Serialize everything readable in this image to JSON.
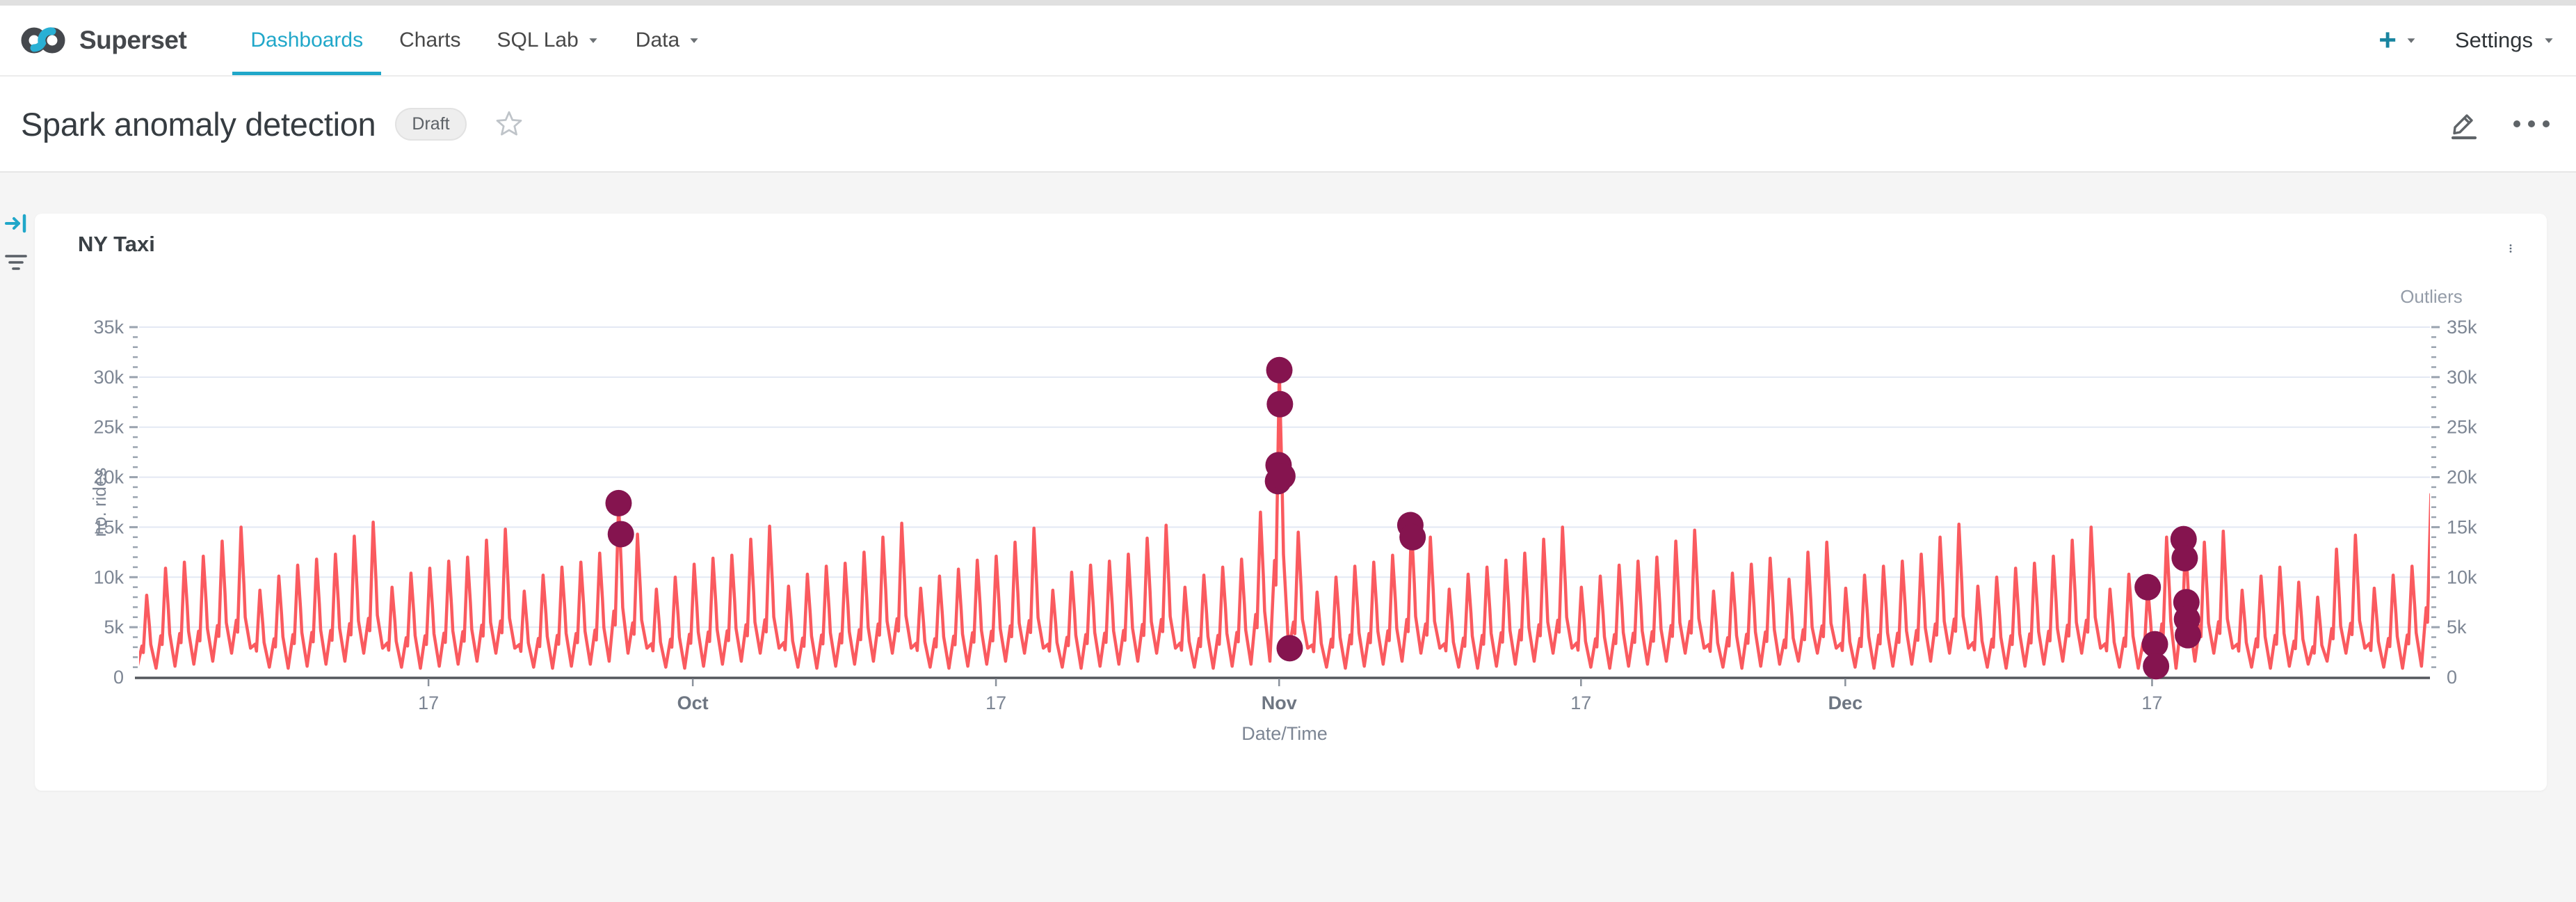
{
  "navbar": {
    "brand": "Superset",
    "items": [
      {
        "label": "Dashboards",
        "active": true,
        "caret": false
      },
      {
        "label": "Charts",
        "active": false,
        "caret": false
      },
      {
        "label": "SQL Lab",
        "active": false,
        "caret": true
      },
      {
        "label": "Data",
        "active": false,
        "caret": true
      }
    ],
    "new_button": "+",
    "settings_label": "Settings"
  },
  "header": {
    "title": "Spark anomaly detection",
    "status_badge": "Draft"
  },
  "chart_card": {
    "title": "NY Taxi"
  },
  "icons": {
    "brand_logo": "superset-infinity",
    "nav_caret": "caret-down",
    "new": "plus",
    "title_star": "star-outline",
    "edit": "pencil",
    "more_header": "ellipsis-horizontal",
    "expand_filters": "arrow-to-right",
    "filter_list": "filter-lines",
    "card_menu": "kebab-vertical"
  },
  "colors": {
    "primary": "#20a7c9",
    "line": "#fa5a5f",
    "outlier": "#85144f",
    "grid": "#e3e8f3",
    "tick": "#9aa3af",
    "axis_label": "#7d8694",
    "month_label": "#6e7682",
    "axis_line": "#53565c",
    "right_title": "#949ca8"
  },
  "chart_data": {
    "type": "line",
    "title": "NY Taxi",
    "xlabel": "Date/Time",
    "ylabel": "no. rides",
    "right_axis_label": "Outliers",
    "legend_position": "none",
    "grid": true,
    "ylim": [
      0,
      35000
    ],
    "y_tick_labels": [
      "0",
      "5k",
      "10k",
      "15k",
      "20k",
      "25k",
      "30k",
      "35k"
    ],
    "x_tick_labels": [
      "17",
      "Oct",
      "17",
      "Nov",
      "17",
      "Dec",
      "17"
    ],
    "x_tick_days": [
      15.33,
      29.33,
      45.39,
      60.39,
      76.38,
      90.38,
      106.63
    ],
    "x_domain_days": [
      0,
      121.35
    ],
    "series_name": "no. rides (daily cycle, values in thousands)",
    "day_peaks_k": [
      8.2,
      10.9,
      11.5,
      12.1,
      13.6,
      15.0,
      8.7,
      10.1,
      11.2,
      11.8,
      12.3,
      14.1,
      15.5,
      9.0,
      10.4,
      10.9,
      11.6,
      12.0,
      13.7,
      14.8,
      8.6,
      10.2,
      11.0,
      11.5,
      12.4,
      17.4,
      14.3,
      8.8,
      10.0,
      11.3,
      11.9,
      12.2,
      13.8,
      15.1,
      9.1,
      10.3,
      11.1,
      11.4,
      12.5,
      14.0,
      15.4,
      8.9,
      10.1,
      10.8,
      11.7,
      12.1,
      13.5,
      14.9,
      8.7,
      10.5,
      11.2,
      11.6,
      12.3,
      13.9,
      15.2,
      9.0,
      10.2,
      11.0,
      11.8,
      16.5,
      30.7,
      14.5,
      8.5,
      10.0,
      11.1,
      11.5,
      12.2,
      15.2,
      14.0,
      8.8,
      10.3,
      11.0,
      11.7,
      12.4,
      13.8,
      15.0,
      9.0,
      10.1,
      11.2,
      11.6,
      12.0,
      13.6,
      14.7,
      8.6,
      10.4,
      11.3,
      11.9,
      9.8,
      12.5,
      13.5,
      8.9,
      10.2,
      11.1,
      11.6,
      12.3,
      14.0,
      15.3,
      9.1,
      10.0,
      10.9,
      11.4,
      12.1,
      13.7,
      15.0,
      8.8,
      10.3,
      9.0,
      14.0,
      13.8,
      13.5,
      14.6,
      8.7,
      10.1,
      11.0,
      9.5,
      8.0,
      12.8,
      14.2,
      8.9,
      10.2,
      11.1,
      18.3
    ],
    "day_troughs_k": [
      1.0,
      0.9,
      1.1,
      1.3,
      1.6,
      2.4,
      2.9,
      1.0,
      0.9,
      1.1,
      1.3,
      1.6,
      2.4,
      2.9,
      1.0,
      0.9,
      1.1,
      1.3,
      1.6,
      2.4,
      2.9,
      1.0,
      0.9,
      1.1,
      1.3,
      1.6,
      2.4,
      2.9,
      1.0,
      0.9,
      1.1,
      1.3,
      1.6,
      2.4,
      2.9,
      1.0,
      0.9,
      1.1,
      1.3,
      1.6,
      2.4,
      2.9,
      1.0,
      0.9,
      1.1,
      1.3,
      1.6,
      2.4,
      2.9,
      1.0,
      0.9,
      1.1,
      1.3,
      1.6,
      2.4,
      2.9,
      1.0,
      0.9,
      1.1,
      1.3,
      1.6,
      2.6,
      2.9,
      1.0,
      0.9,
      1.1,
      1.3,
      1.6,
      2.4,
      2.9,
      1.0,
      0.9,
      1.1,
      1.3,
      1.6,
      2.4,
      2.9,
      1.0,
      0.9,
      1.1,
      1.3,
      1.6,
      2.4,
      2.9,
      1.0,
      0.9,
      1.1,
      1.3,
      1.6,
      2.4,
      2.9,
      1.0,
      0.9,
      1.1,
      1.3,
      1.6,
      2.4,
      2.9,
      1.0,
      0.9,
      1.1,
      1.3,
      1.6,
      2.4,
      2.9,
      1.0,
      0.9,
      1.2,
      0.9,
      1.6,
      2.4,
      2.9,
      1.0,
      0.9,
      1.1,
      1.3,
      1.6,
      2.4,
      2.9,
      1.0,
      0.9,
      1.1
    ],
    "outliers": {
      "name": "Outliers",
      "marker_radius_px": 19,
      "points_day_valuek": [
        [
          25.4,
          17.4
        ],
        [
          25.52,
          14.3
        ],
        [
          60.4,
          30.7
        ],
        [
          60.43,
          27.3
        ],
        [
          60.36,
          21.2
        ],
        [
          60.33,
          19.6
        ],
        [
          60.56,
          20.1
        ],
        [
          60.95,
          2.9
        ],
        [
          67.34,
          15.2
        ],
        [
          67.46,
          14.0
        ],
        [
          106.4,
          9.0
        ],
        [
          106.78,
          3.3
        ],
        [
          106.84,
          1.1
        ],
        [
          108.3,
          13.8
        ],
        [
          108.36,
          11.9
        ],
        [
          108.45,
          7.5
        ],
        [
          108.48,
          5.8
        ],
        [
          108.53,
          4.2
        ]
      ]
    }
  }
}
